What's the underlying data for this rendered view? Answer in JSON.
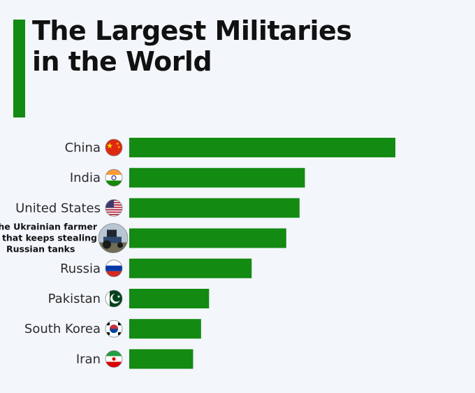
{
  "title": {
    "line1": "The Largest Militaries",
    "line2": "in the World"
  },
  "colors": {
    "accent": "#138a12",
    "bar": "#138a12",
    "background": "#f3f6fb"
  },
  "chart_data": {
    "type": "bar",
    "orientation": "horizontal",
    "title": "The Largest Militaries in the World",
    "xlabel": "",
    "ylabel": "",
    "grid": false,
    "categories": [
      "China",
      "India",
      "United States",
      "The Ukrainian farmer that keeps stealing Russian tanks",
      "Russia",
      "Pakistan",
      "South Korea",
      "Iran"
    ],
    "category_lines": [
      [
        "China"
      ],
      [
        "India"
      ],
      [
        "United States"
      ],
      [
        "The Ukrainian farmer",
        "that keeps stealing",
        "Russian tanks"
      ],
      [
        "Russia"
      ],
      [
        "Pakistan"
      ],
      [
        "South Korea"
      ],
      [
        "Iran"
      ]
    ],
    "icons": [
      "china-flag-icon",
      "india-flag-icon",
      "usa-flag-icon",
      "farmer-tractor-photo-icon",
      "russia-flag-icon",
      "pakistan-flag-icon",
      "south-korea-flag-icon",
      "iran-flag-icon"
    ],
    "values": [
      100,
      66,
      64,
      59,
      46,
      30,
      27,
      24
    ],
    "xlim": [
      0,
      100
    ]
  }
}
